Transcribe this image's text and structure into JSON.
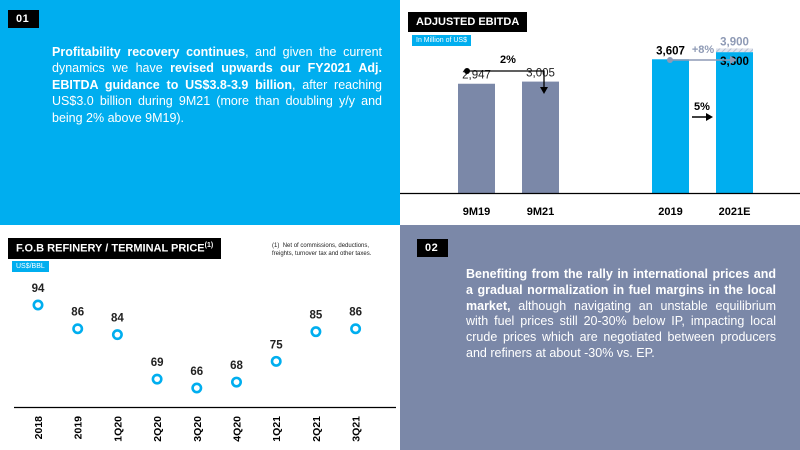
{
  "panel01": {
    "tag": "01",
    "segments": [
      {
        "text": "Profitability recovery continues",
        "bold": true
      },
      {
        "text": ", and given the current dynamics we have ",
        "bold": false
      },
      {
        "text": "revised upwards our FY2021 Adj. EBITDA guidance to US$3.8-3.9 billion",
        "bold": true
      },
      {
        "text": ", after reaching US$3.0 billion during 9M21 (more than doubling y/y and being 2% above 9M19).",
        "bold": false
      }
    ]
  },
  "panel02": {
    "tag": "02",
    "segments": [
      {
        "text": "Benefiting from the rally in international prices and a gradual normalization in fuel margins in the local market,",
        "bold": true
      },
      {
        "text": " although navigating an unstable equilibrium with fuel prices still 20-30% below IP, impacting local crude prices which are negotiated between producers and refiners at about -30% vs. EP.",
        "bold": false
      }
    ]
  },
  "ebitda": {
    "title": "ADJUSTED EBITDA",
    "unit": "In Million of US$",
    "growth_left": "2%",
    "growth_right": "+8%",
    "growth_2021e": "5%",
    "colors": {
      "gray": "#7b88a8",
      "cyan": "#00aeef",
      "arrow_gray": "#8e9ab5",
      "stripe": "#b5bdd0"
    }
  },
  "fob": {
    "title": "F.O.B REFINERY / TERMINAL PRICE",
    "title_sup": "(1)",
    "unit": "US$/BBL",
    "footnote_mark": "(1)",
    "footnote": "Net of commissions, deductions, freights, turnover tax and other taxes.",
    "colors": {
      "marker": "#00aeef"
    }
  },
  "chart_data": [
    {
      "type": "bar",
      "title": "ADJUSTED EBITDA",
      "ylabel": "In Million of US$",
      "categories": [
        "9M19",
        "9M21",
        "2019",
        "2021E"
      ],
      "values": [
        2947,
        3005,
        3607,
        3800
      ],
      "value_labels": [
        "2,947",
        "3,005",
        "3,607",
        "3,800"
      ],
      "extra": {
        "category": "2021E",
        "value": 3900,
        "label": "3,900"
      },
      "ylim": [
        0,
        4100
      ],
      "grid": false
    },
    {
      "type": "scatter",
      "title": "F.O.B REFINERY / TERMINAL PRICE",
      "ylabel": "US$/BBL",
      "categories": [
        "2018",
        "2019",
        "1Q20",
        "2Q20",
        "3Q20",
        "4Q20",
        "1Q21",
        "2Q21",
        "3Q21"
      ],
      "values": [
        94,
        86,
        84,
        69,
        66,
        68,
        75,
        85,
        86
      ],
      "ylim": [
        60,
        100
      ],
      "grid": false
    }
  ]
}
